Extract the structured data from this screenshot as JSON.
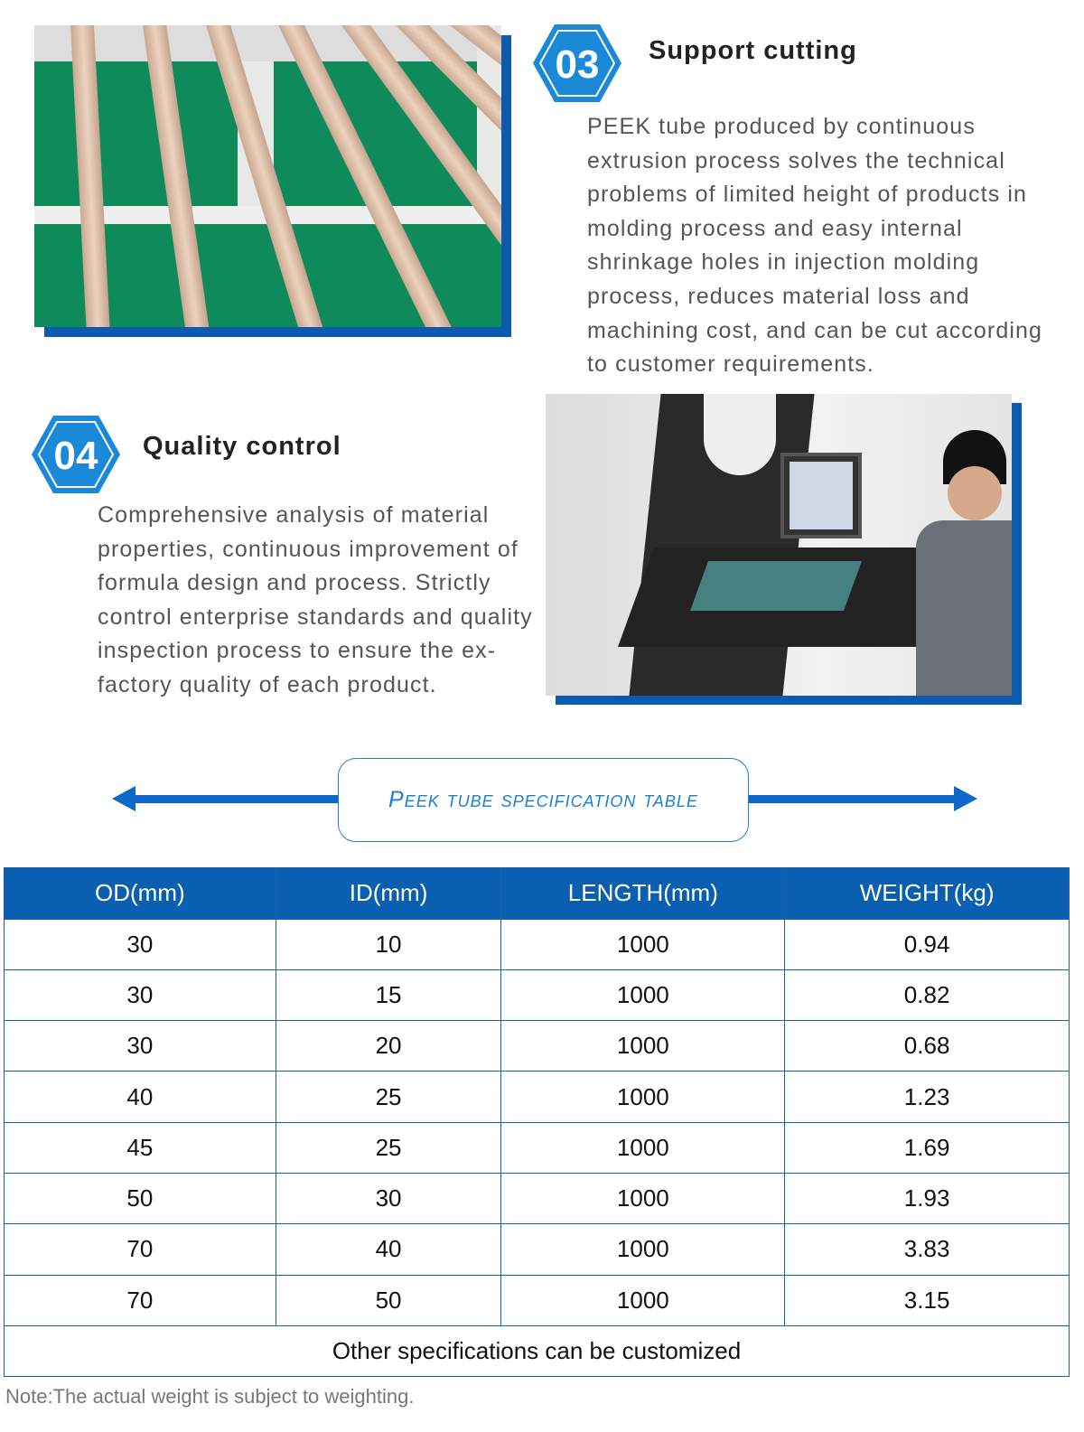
{
  "section3": {
    "number": "03",
    "title": "Support cutting",
    "body": "PEEK tube produced by continuous extrusion process solves the technical problems of limited height of products in molding process and easy internal shrinkage holes in injection molding process, reduces material loss and machining cost, and can be cut according to customer requirements."
  },
  "section4": {
    "number": "04",
    "title": "Quality control",
    "body": "Comprehensive analysis of material properties, continuous improvement of formula design and process. Strictly control enterprise standards and quality inspection process to ensure the ex-factory quality of each product."
  },
  "spec_title": "Peek tube specification table",
  "table": {
    "headers": [
      "OD(mm)",
      "ID(mm)",
      "LENGTH(mm)",
      "WEIGHT(kg)"
    ],
    "rows": [
      [
        "30",
        "10",
        "1000",
        "0.94"
      ],
      [
        "30",
        "15",
        "1000",
        "0.82"
      ],
      [
        "30",
        "20",
        "1000",
        "0.68"
      ],
      [
        "40",
        "25",
        "1000",
        "1.23"
      ],
      [
        "45",
        "25",
        "1000",
        "1.69"
      ],
      [
        "50",
        "30",
        "1000",
        "1.93"
      ],
      [
        "70",
        "40",
        "1000",
        "3.83"
      ],
      [
        "70",
        "50",
        "1000",
        "3.15"
      ]
    ],
    "footer": "Other specifications can be customized"
  },
  "note": "Note:The actual weight is subject to weighting.",
  "colors": {
    "accent": "#0b5fb0",
    "badge": "#1a8ad8",
    "spec_text": "#1a7fd4"
  }
}
